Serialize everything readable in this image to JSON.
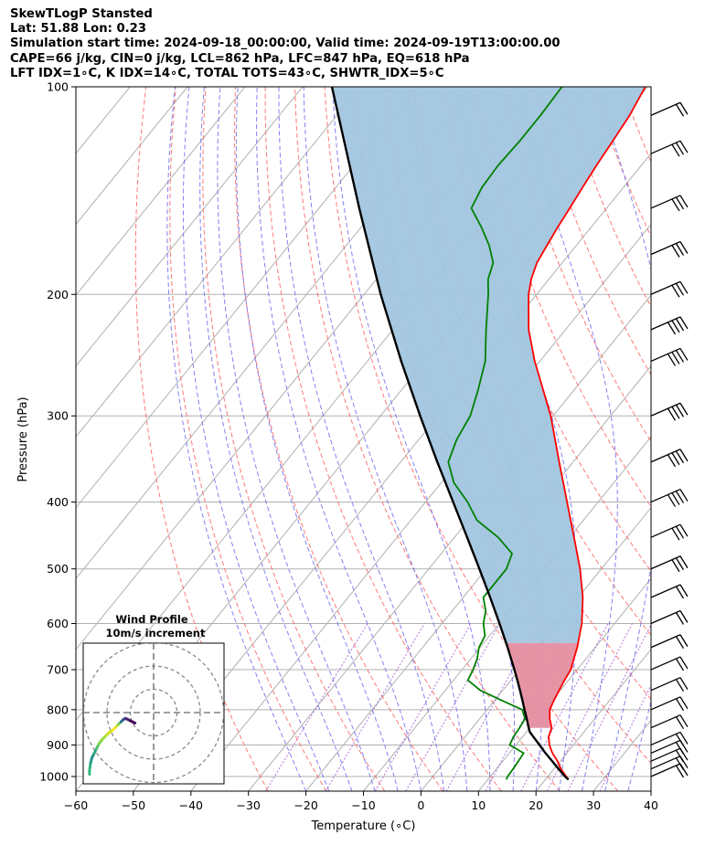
{
  "header": {
    "line1": "SkewTLogP Stansted",
    "line2": "Lat: 51.88   Lon: 0.23",
    "line3": "Simulation start time: 2024-09-18_00:00:00, Valid time: 2024-09-19T13:00:00.00",
    "line4": "CAPE=66 j/kg, CIN=0 j/kg, LCL=862 hPa, LFC=847 hPa, EQ=618 hPa",
    "line5": "LFT IDX=1∘C, K IDX=14∘C, TOTAL TOTS=43∘C, SHWTR_IDX=5∘C"
  },
  "chart_data": {
    "type": "skew-t",
    "xlabel": "Temperature (∘C)",
    "ylabel": "Pressure (hPa)",
    "xlim": [
      -60,
      40
    ],
    "ylim": [
      1050,
      100
    ],
    "yscale": "log",
    "grid": true,
    "x_ticks": [
      -60,
      -50,
      -40,
      -30,
      -20,
      -10,
      0,
      10,
      20,
      30,
      40
    ],
    "x_tick_labels": [
      "−60",
      "−50",
      "−40",
      "−30",
      "−20",
      "−10",
      "0",
      "10",
      "20",
      "30",
      "40"
    ],
    "y_ticks": [
      1000,
      900,
      800,
      700,
      600,
      500,
      400,
      300,
      200,
      100
    ],
    "y_tick_labels": [
      "1000",
      "900",
      "800",
      "700",
      "600",
      "500",
      "400",
      "300",
      "200",
      "100"
    ],
    "colors": {
      "temperature": "#ff0000",
      "dewpoint": "#008000",
      "parcel": "#000000",
      "cape_fill": "#a1c5df",
      "cin_fill": "#e58ea0",
      "dry_adiabat": "#ff6060",
      "moist_adiabat": "#6c6cf0",
      "mixing_ratio": "#9b4fcf",
      "isotherm": "#b0b0b0"
    },
    "series": [
      {
        "key": "temperature",
        "pressure": [
          1010,
          1000,
          975,
          950,
          925,
          900,
          875,
          850,
          825,
          800,
          775,
          750,
          725,
          700,
          675,
          650,
          600,
          550,
          500,
          450,
          400,
          350,
          300,
          275,
          250,
          225,
          200,
          190,
          180,
          170,
          160,
          150,
          140,
          130,
          120,
          110,
          100
        ],
        "values": [
          24,
          23.2,
          21.2,
          19.5,
          17.5,
          15.8,
          14.5,
          13.8,
          12.2,
          10.9,
          10.3,
          9.8,
          9.3,
          8.9,
          7.9,
          6.9,
          4.3,
          0.8,
          -3.7,
          -9.2,
          -15.4,
          -22.4,
          -30.4,
          -35.4,
          -40.9,
          -46.4,
          -51.4,
          -53.1,
          -54.4,
          -55.1,
          -55.8,
          -56.4,
          -57.1,
          -57.8,
          -58.4,
          -59.1,
          -60.4
        ]
      },
      {
        "key": "dewpoint",
        "pressure": [
          1010,
          1000,
          975,
          950,
          925,
          900,
          875,
          850,
          825,
          800,
          775,
          750,
          725,
          700,
          675,
          650,
          625,
          600,
          575,
          550,
          500,
          475,
          450,
          425,
          400,
          375,
          350,
          325,
          300,
          275,
          250,
          225,
          200,
          190,
          180,
          170,
          160,
          150,
          140,
          130,
          120,
          110,
          100
        ],
        "values": [
          13.2,
          13.0,
          12.9,
          12.7,
          12.5,
          8.9,
          8.4,
          8.2,
          7.9,
          6.1,
          1.1,
          -3.9,
          -7.5,
          -8.1,
          -8.9,
          -10.2,
          -10.8,
          -12.8,
          -14.2,
          -16.5,
          -16.5,
          -17.7,
          -22.4,
          -28.5,
          -32.7,
          -37.8,
          -41.7,
          -43.4,
          -44.4,
          -46.7,
          -49.5,
          -53.8,
          -58.4,
          -60.6,
          -62.0,
          -65.1,
          -69.0,
          -73.5,
          -74.6,
          -74.9,
          -74.6,
          -74.6,
          -74.9
        ]
      },
      {
        "key": "parcel",
        "pressure": [
          1010,
          1000,
          975,
          950,
          925,
          900,
          875,
          862,
          850,
          825,
          800,
          775,
          750,
          725,
          700,
          650,
          600,
          550,
          500,
          450,
          400,
          350,
          300,
          250,
          200,
          150,
          100
        ],
        "values": [
          24,
          23.0,
          20.8,
          18.6,
          16.3,
          14.1,
          11.8,
          10.6,
          9.8,
          8.2,
          6.5,
          4.8,
          3.0,
          1.1,
          -0.9,
          -5.2,
          -10.0,
          -15.3,
          -21.2,
          -27.8,
          -35.2,
          -43.6,
          -53.1,
          -64.1,
          -77.1,
          -93.0,
          -114.9
        ]
      }
    ],
    "wind_barbs": [
      {
        "pressure": 1000,
        "barbs": 2
      },
      {
        "pressure": 975,
        "barbs": 2
      },
      {
        "pressure": 950,
        "barbs": 2
      },
      {
        "pressure": 925,
        "barbs": 2
      },
      {
        "pressure": 900,
        "barbs": 2
      },
      {
        "pressure": 850,
        "barbs": 2
      },
      {
        "pressure": 800,
        "barbs": 2
      },
      {
        "pressure": 750,
        "barbs": 2
      },
      {
        "pressure": 700,
        "barbs": 2
      },
      {
        "pressure": 650,
        "barbs": 2
      },
      {
        "pressure": 600,
        "barbs": 2
      },
      {
        "pressure": 550,
        "barbs": 2
      },
      {
        "pressure": 500,
        "barbs": 3
      },
      {
        "pressure": 450,
        "barbs": 3
      },
      {
        "pressure": 400,
        "barbs": 4
      },
      {
        "pressure": 350,
        "barbs": 4
      },
      {
        "pressure": 300,
        "barbs": 4
      },
      {
        "pressure": 250,
        "barbs": 4
      },
      {
        "pressure": 225,
        "barbs": 4
      },
      {
        "pressure": 200,
        "barbs": 3
      },
      {
        "pressure": 175,
        "barbs": 3
      },
      {
        "pressure": 150,
        "barbs": 3
      },
      {
        "pressure": 125,
        "barbs": 3
      },
      {
        "pressure": 110,
        "barbs": 2
      }
    ],
    "hodograph": {
      "title": "Wind Profile",
      "subtitle": "10m/s increment",
      "u": [
        -27.5,
        -27.5,
        -27.3,
        -27.0,
        -26.5,
        -25.5,
        -24.5,
        -23.5,
        -22.0,
        -20.5,
        -19.0,
        -17.5,
        -16.0,
        -15.0,
        -14.0,
        -13.0,
        -12.0,
        -11.0,
        -10.0,
        -9.0,
        -8.0
      ],
      "v": [
        -26.5,
        -25.0,
        -23.5,
        -21.5,
        -19.5,
        -17.5,
        -15.5,
        -13.5,
        -11.5,
        -10.0,
        -8.5,
        -7.5,
        -6.0,
        -5.0,
        -4.0,
        -3.0,
        -2.5,
        -3.0,
        -3.5,
        -4.0,
        -4.5
      ]
    }
  }
}
